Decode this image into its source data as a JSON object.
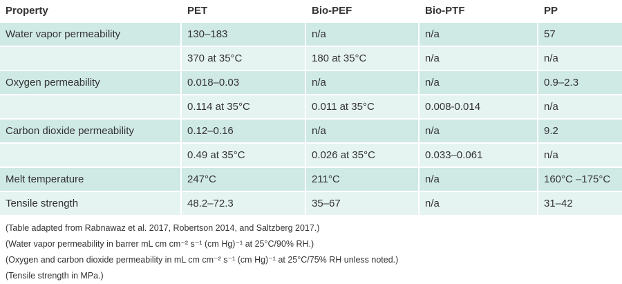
{
  "table": {
    "header": [
      "Property",
      "PET",
      "Bio-PEF",
      "Bio-PTF",
      "PP"
    ],
    "rows": [
      [
        "Water vapor permeability",
        "130–183",
        "n/a",
        "n/a",
        "57"
      ],
      [
        null,
        "370 at 35°C",
        "180 at 35°C",
        "n/a",
        "n/a"
      ],
      [
        "Oxygen permeability",
        "0.018–0.03",
        "n/a",
        "n/a",
        "0.9–2.3"
      ],
      [
        null,
        "0.114 at 35°C",
        "0.011 at 35°C",
        "0.008-0.014",
        "n/a"
      ],
      [
        "Carbon dioxide permeability",
        "0.12–0.16",
        "n/a",
        "n/a",
        "9.2"
      ],
      [
        null,
        "0.49 at 35°C",
        "0.026 at 35°C",
        "0.033–0.061",
        "n/a"
      ],
      [
        "Melt temperature",
        "247°C",
        "211°C",
        "n/a",
        "160°C –175°C"
      ],
      [
        "Tensile strength",
        "48.2–72.3",
        "35–67",
        "n/a",
        "31–42"
      ]
    ]
  },
  "notes": [
    "(Table adapted from Rabnawaz et al. 2017, Robertson 2014, and Saltzberg 2017.)",
    "(Water vapor permeability in barrer mL cm cm⁻² s⁻¹ (cm Hg)⁻¹ at 25°C/90% RH.)",
    "(Oxygen and carbon dioxide permeability in mL cm cm⁻² s⁻¹ (cm Hg)⁻¹ at 25°C/75% RH unless noted.)",
    "(Tensile strength in MPa.)"
  ]
}
